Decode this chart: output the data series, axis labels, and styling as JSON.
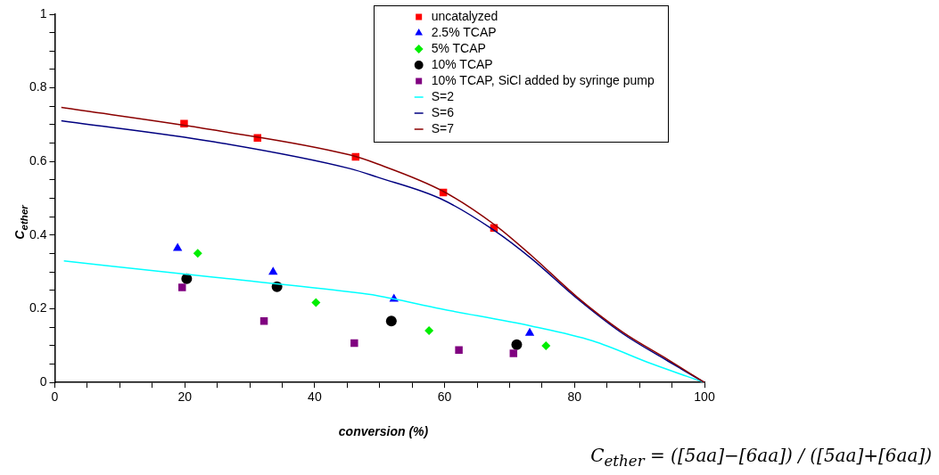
{
  "chart_data": {
    "type": "scatter",
    "xlabel": "conversion (%)",
    "ylabel": "C$_{ether}$",
    "xlim": [
      0,
      100
    ],
    "ylim": [
      0,
      1
    ],
    "xticks": [
      0,
      {
        "value": 5,
        "label": null
      },
      {
        "value": 10,
        "label": null
      },
      {
        "value": 15,
        "label": null
      },
      20,
      {
        "value": 25,
        "label": null
      },
      {
        "value": 30,
        "label": null
      },
      {
        "value": 35,
        "label": null
      },
      40,
      {
        "value": 45,
        "label": null
      },
      {
        "value": 50,
        "label": null
      },
      {
        "value": 55,
        "label": null
      },
      60,
      {
        "value": 65,
        "label": null
      },
      {
        "value": 70,
        "label": null
      },
      {
        "value": 75,
        "label": null
      },
      80,
      {
        "value": 85,
        "label": null
      },
      {
        "value": 90,
        "label": null
      },
      {
        "value": 95,
        "label": null
      },
      100
    ],
    "yticks": [
      0,
      {
        "value": 0.05,
        "label": null
      },
      {
        "value": 0.1,
        "label": null
      },
      {
        "value": 0.15,
        "label": null
      },
      0.2,
      {
        "value": 0.25,
        "label": null
      },
      {
        "value": 0.3,
        "label": null
      },
      {
        "value": 0.35,
        "label": null
      },
      0.4,
      {
        "value": 0.45,
        "label": null
      },
      {
        "value": 0.5,
        "label": null
      },
      {
        "value": 0.55,
        "label": null
      },
      0.6,
      {
        "value": 0.65,
        "label": null
      },
      {
        "value": 0.7,
        "label": null
      },
      {
        "value": 0.75,
        "label": null
      },
      0.8,
      {
        "value": 0.85,
        "label": null
      },
      {
        "value": 0.9,
        "label": null
      },
      {
        "value": 0.95,
        "label": null
      },
      1
    ],
    "grid": false,
    "legend": "top right",
    "series": [
      {
        "name": "uncatalyzed",
        "color": "#ff0000",
        "marker": "square",
        "x": [
          19.9,
          31.2,
          46.3,
          59.8,
          67.6
        ],
        "values": [
          0.703,
          0.664,
          0.613,
          0.516,
          0.42
        ]
      },
      {
        "name": "2.5% TCAP",
        "color": "#0000ff",
        "marker": "triangle",
        "x": [
          18.9,
          33.6,
          52.2,
          73.1
        ],
        "values": [
          0.365,
          0.3,
          0.227,
          0.134
        ]
      },
      {
        "name": "5% TCAP",
        "color": "#00ee00",
        "marker": "diamond",
        "x": [
          22.0,
          40.2,
          57.6,
          75.6
        ],
        "values": [
          0.351,
          0.217,
          0.141,
          0.1
        ]
      },
      {
        "name": "10% TCAP",
        "color": "#000000",
        "marker": "circle",
        "x": [
          20.3,
          34.2,
          51.8,
          71.1
        ],
        "values": [
          0.282,
          0.26,
          0.167,
          0.103
        ]
      },
      {
        "name": "10% TCAP, SiCl added by syringe pump",
        "color": "#800080",
        "marker": "square",
        "x": [
          19.6,
          32.2,
          46.1,
          62.2,
          70.6
        ],
        "values": [
          0.258,
          0.167,
          0.107,
          0.088,
          0.079
        ]
      },
      {
        "name": "S=2",
        "type": "line",
        "color": "#00ffff",
        "marker": "none",
        "x": [
          1.4,
          24.4,
          45.4,
          49.6,
          59.4,
          73.4,
          82.8,
          92,
          100
        ],
        "values": [
          0.33,
          0.286,
          0.246,
          0.236,
          0.2,
          0.153,
          0.113,
          0.05,
          0
        ]
      },
      {
        "name": "S=6",
        "type": "line",
        "color": "#000080",
        "marker": "none",
        "x": [
          1,
          24.4,
          45.4,
          49.6,
          59.4,
          67.8,
          73.4,
          80.4,
          87.4,
          94.4,
          100
        ],
        "values": [
          0.711,
          0.654,
          0.581,
          0.558,
          0.499,
          0.411,
          0.336,
          0.228,
          0.133,
          0.058,
          0
        ]
      },
      {
        "name": "S=7",
        "type": "line",
        "color": "#8b0000",
        "marker": "none",
        "x": [
          1,
          24.4,
          45.4,
          49.6,
          59.8,
          67.8,
          73.4,
          80.4,
          87.4,
          94.4,
          100
        ],
        "values": [
          0.747,
          0.686,
          0.618,
          0.594,
          0.519,
          0.427,
          0.344,
          0.232,
          0.137,
          0.062,
          0
        ]
      }
    ],
    "annotations": [
      "C$_{ether}$ = ([5aa]−[6aa]) / ([5aa]+[6aa])"
    ]
  }
}
